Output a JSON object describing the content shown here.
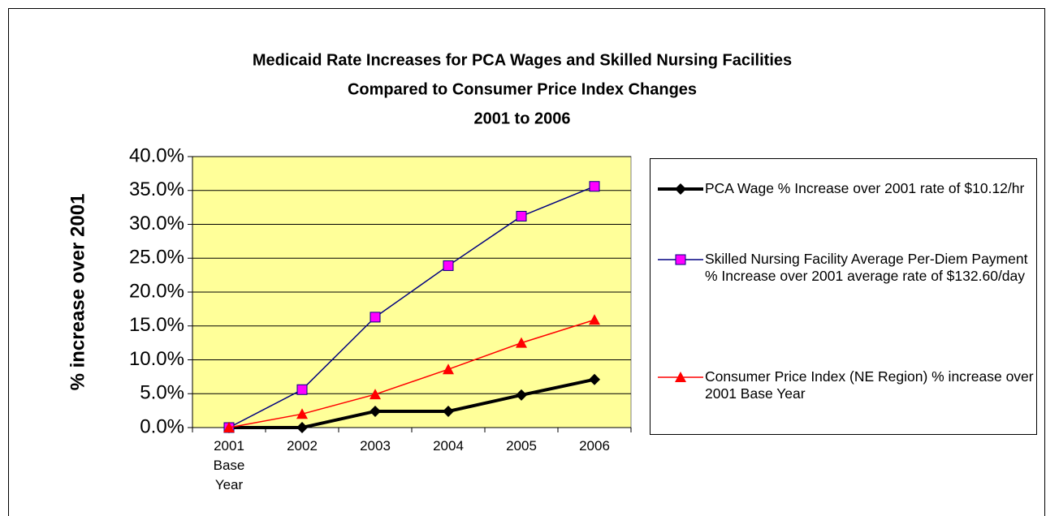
{
  "chart_data": {
    "type": "line",
    "title": [
      "Medicaid Rate Increases for PCA Wages and Skilled Nursing Facilities",
      "Compared to Consumer Price Index Changes",
      "2001 to 2006"
    ],
    "y_label": "% increase over 2001",
    "categories": [
      "2001 Base Year",
      "2002",
      "2003",
      "2004",
      "2005",
      "2006"
    ],
    "series": [
      {
        "name": "PCA Wage % Increase over 2001 rate of $10.12/hr",
        "color": "#000000",
        "marker": "diamond",
        "values": [
          0,
          0,
          2.4,
          2.4,
          4.8,
          7.1
        ]
      },
      {
        "name": "Skilled Nursing Facility Average Per-Diem Payment % Increase over 2001 average rate of $132.60/day",
        "color": "#000080",
        "marker": "square",
        "marker_fill": "#ff00ff",
        "values": [
          0,
          5.6,
          16.3,
          23.9,
          31.2,
          35.6
        ]
      },
      {
        "name": "Consumer Price Index (NE Region) % increase over 2001 Base Year",
        "color": "#ff0000",
        "marker": "triangle",
        "values": [
          0,
          2.0,
          4.9,
          8.6,
          12.5,
          15.9
        ]
      }
    ],
    "ylim": [
      0,
      40
    ],
    "yticks": [
      {
        "value": 0,
        "label": "0.0%"
      },
      {
        "value": 5,
        "label": "5.0%"
      },
      {
        "value": 10,
        "label": "10.0%"
      },
      {
        "value": 15,
        "label": "15.0%"
      },
      {
        "value": 20,
        "label": "20.0%"
      },
      {
        "value": 25,
        "label": "25.0%"
      },
      {
        "value": 30,
        "label": "30.0%"
      },
      {
        "value": 35,
        "label": "35.0%"
      },
      {
        "value": 40,
        "label": "40.0%"
      }
    ],
    "grid": true,
    "plot_background": "#ffff99",
    "legend": "right"
  }
}
